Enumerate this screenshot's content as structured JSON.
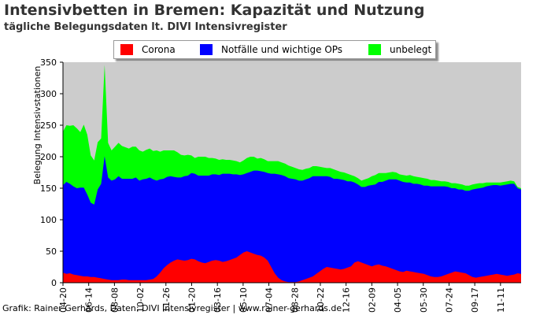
{
  "header": {
    "title": "Intensivbetten in Bremen: Kapazität und Nutzung",
    "subtitle": "tägliche Belegungsdaten lt. DIVI Intensivregister"
  },
  "footer": {
    "credit": "Grafik: Rainer Gerhards, Daten: DIVI Intensivregister | www.rainer-gerhards.de"
  },
  "colors": {
    "corona": "#ff0000",
    "notfaelle": "#0000ff",
    "unbelegt": "#00ff00",
    "background": "#cccccc"
  },
  "chart_data": {
    "type": "area",
    "stacked": true,
    "ylabel": "Belegung Intensivstationen",
    "xlabel": "",
    "ylim": [
      0,
      350
    ],
    "yticks": [
      0,
      50,
      100,
      150,
      200,
      250,
      300,
      350
    ],
    "grid": false,
    "legend_position": "top",
    "x_tick_labels": [
      "04-20",
      "06-14",
      "08-08",
      "10-02",
      "11-26",
      "01-20",
      "03-16",
      "05-10",
      "07-04",
      "08-28",
      "10-22",
      "12-16",
      "02-09",
      "04-05",
      "05-30",
      "07-24",
      "09-17",
      "11-11"
    ],
    "series": [
      {
        "name": "Corona",
        "color": "#ff0000",
        "values": [
          16,
          14,
          15,
          13,
          12,
          11,
          10,
          10,
          9,
          9,
          8,
          7,
          6,
          5,
          4,
          4,
          4,
          5,
          5,
          4,
          4,
          4,
          4,
          4,
          4,
          5,
          6,
          10,
          16,
          23,
          28,
          32,
          35,
          37,
          36,
          35,
          36,
          38,
          37,
          34,
          32,
          31,
          33,
          35,
          36,
          35,
          33,
          34,
          36,
          38,
          40,
          44,
          48,
          50,
          48,
          46,
          44,
          43,
          40,
          35,
          25,
          15,
          8,
          4,
          2,
          1,
          1,
          1,
          2,
          4,
          6,
          8,
          10,
          14,
          18,
          22,
          25,
          24,
          23,
          22,
          21,
          22,
          24,
          26,
          32,
          34,
          32,
          30,
          28,
          26,
          28,
          29,
          27,
          26,
          24,
          22,
          20,
          18,
          17,
          19,
          18,
          17,
          16,
          15,
          14,
          12,
          10,
          9,
          9,
          10,
          12,
          14,
          16,
          18,
          17,
          16,
          15,
          12,
          9,
          8,
          9,
          10,
          11,
          12,
          13,
          14,
          13,
          12,
          11,
          12,
          13,
          15,
          14
        ]
      },
      {
        "name": "Notfälle und wichtige OPs",
        "color": "#0000ff",
        "values": [
          139,
          146,
          142,
          140,
          138,
          140,
          141,
          130,
          118,
          115,
          140,
          150,
          195,
          162,
          158,
          160,
          165,
          160,
          160,
          161,
          161,
          163,
          158,
          160,
          161,
          162,
          158,
          152,
          148,
          142,
          140,
          137,
          133,
          130,
          131,
          134,
          134,
          136,
          136,
          136,
          138,
          139,
          137,
          137,
          136,
          136,
          140,
          139,
          137,
          134,
          132,
          127,
          124,
          124,
          128,
          132,
          134,
          134,
          136,
          139,
          148,
          158,
          164,
          167,
          167,
          165,
          164,
          163,
          160,
          158,
          158,
          158,
          159,
          155,
          151,
          147,
          144,
          144,
          142,
          143,
          143,
          141,
          137,
          135,
          127,
          122,
          120,
          122,
          126,
          129,
          128,
          131,
          133,
          136,
          140,
          142,
          144,
          144,
          143,
          140,
          141,
          140,
          141,
          141,
          140,
          142,
          143,
          144,
          144,
          143,
          141,
          138,
          134,
          132,
          131,
          132,
          131,
          134,
          139,
          141,
          141,
          141,
          142,
          142,
          142,
          141,
          141,
          143,
          145,
          145,
          144,
          135,
          134
        ]
      },
      {
        "name": "unbelegt",
        "color": "#00ff00",
        "values": [
          85,
          90,
          92,
          97,
          95,
          88,
          100,
          95,
          75,
          70,
          75,
          72,
          145,
          55,
          48,
          52,
          53,
          52,
          50,
          48,
          51,
          49,
          48,
          44,
          46,
          46,
          45,
          48,
          44,
          45,
          42,
          41,
          42,
          40,
          36,
          33,
          33,
          28,
          25,
          30,
          30,
          30,
          28,
          26,
          25,
          24,
          23,
          22,
          22,
          22,
          21,
          20,
          22,
          24,
          24,
          22,
          19,
          21,
          20,
          19,
          20,
          20,
          21,
          20,
          20,
          20,
          19,
          18,
          18,
          17,
          17,
          16,
          16,
          16,
          15,
          14,
          13,
          14,
          15,
          13,
          12,
          12,
          12,
          10,
          10,
          10,
          10,
          12,
          12,
          14,
          15,
          14,
          14,
          12,
          11,
          12,
          11,
          10,
          11,
          11,
          12,
          12,
          11,
          11,
          12,
          11,
          10,
          10,
          9,
          8,
          8,
          8,
          8,
          8,
          9,
          8,
          8,
          8,
          8,
          8,
          8,
          7,
          6,
          5,
          4,
          4,
          5,
          5,
          5,
          5,
          4,
          2,
          2
        ]
      }
    ]
  }
}
